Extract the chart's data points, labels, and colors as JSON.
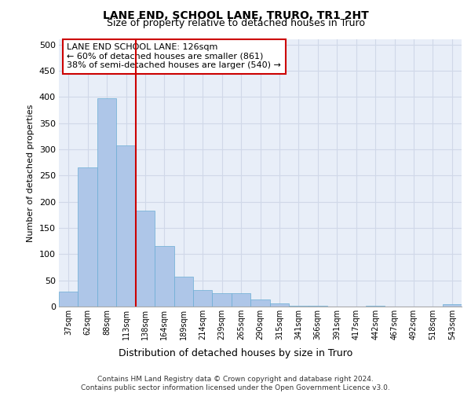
{
  "title": "LANE END, SCHOOL LANE, TRURO, TR1 2HT",
  "subtitle": "Size of property relative to detached houses in Truro",
  "xlabel": "Distribution of detached houses by size in Truro",
  "ylabel": "Number of detached properties",
  "categories": [
    "37sqm",
    "62sqm",
    "88sqm",
    "113sqm",
    "138sqm",
    "164sqm",
    "189sqm",
    "214sqm",
    "239sqm",
    "265sqm",
    "290sqm",
    "315sqm",
    "341sqm",
    "366sqm",
    "391sqm",
    "417sqm",
    "442sqm",
    "467sqm",
    "492sqm",
    "518sqm",
    "543sqm"
  ],
  "values": [
    28,
    265,
    397,
    308,
    183,
    115,
    57,
    32,
    25,
    25,
    13,
    6,
    1,
    1,
    0,
    0,
    1,
    0,
    0,
    0,
    5
  ],
  "bar_color": "#aec6e8",
  "bar_edge_color": "#6aadd5",
  "vline_color": "#cc0000",
  "annotation_text": "LANE END SCHOOL LANE: 126sqm\n← 60% of detached houses are smaller (861)\n38% of semi-detached houses are larger (540) →",
  "annotation_box_color": "#ffffff",
  "annotation_box_edge_color": "#cc0000",
  "ylim": [
    0,
    510
  ],
  "yticks": [
    0,
    50,
    100,
    150,
    200,
    250,
    300,
    350,
    400,
    450,
    500
  ],
  "grid_color": "#d0d8e8",
  "background_color": "#e8eef8",
  "footer": "Contains HM Land Registry data © Crown copyright and database right 2024.\nContains public sector information licensed under the Open Government Licence v3.0."
}
